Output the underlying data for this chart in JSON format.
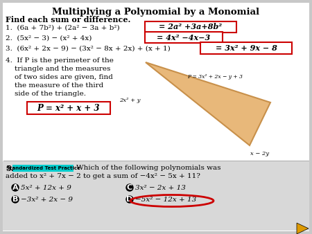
{
  "title": "Multiplying a Polynomial by a Monomial",
  "bg_color": "#c8c8c8",
  "white_bg": "#ffffff",
  "title_color": "#000000",
  "answer_box_color": "#cc0000",
  "triangle_color": "#e8b87a",
  "triangle_edge": "#c8904a",
  "triangle_bg": "#f5f0e8",
  "stp_bg": "#00cccc",
  "nav_arrow_color": "#dd9900",
  "nav_arrow_edge": "#000000",
  "problem1_q": "1.  (6a + 7b²) + (2a² − 3a + b²)",
  "problem1_a": "= 2a² +3a+8b²",
  "problem2_q": "2.  (5x² − 3) − (x² + 4x)",
  "problem2_a": "= 4x² −4x−3",
  "problem3_q": "3.  (6x² + 2x − 9) − (3x² − 8x + 2x) + (x + 1)",
  "problem3_a": "= 3x² + 9x − 8",
  "p4_line1": "4.  If P is the perimeter of the",
  "p4_line2": "    triangle and the measures",
  "p4_line3": "    of two sides are given, find",
  "p4_line4": "    the measure of the third",
  "p4_line5": "    side of the triangle.",
  "problem4_a": "P = x² + x + 3",
  "triangle_label_p": "P = 3x² + 2x − y + 3",
  "triangle_label_left": "2x² + y",
  "triangle_label_bottom": "x − 2y",
  "problem5_label": "Standardized Test Practice",
  "p5_line1": "Which of the following polynomials was",
  "p5_line2": "added to x² + 7x − 2 to get a sum of −4x² − 5x + 11?",
  "ans_A": "5x² + 12x + 9",
  "ans_B": "−3x² + 2x − 9",
  "ans_C": "3x² − 2x + 13",
  "ans_D": "−5x² − 12x + 13",
  "find_header": "Find each sum or difference."
}
